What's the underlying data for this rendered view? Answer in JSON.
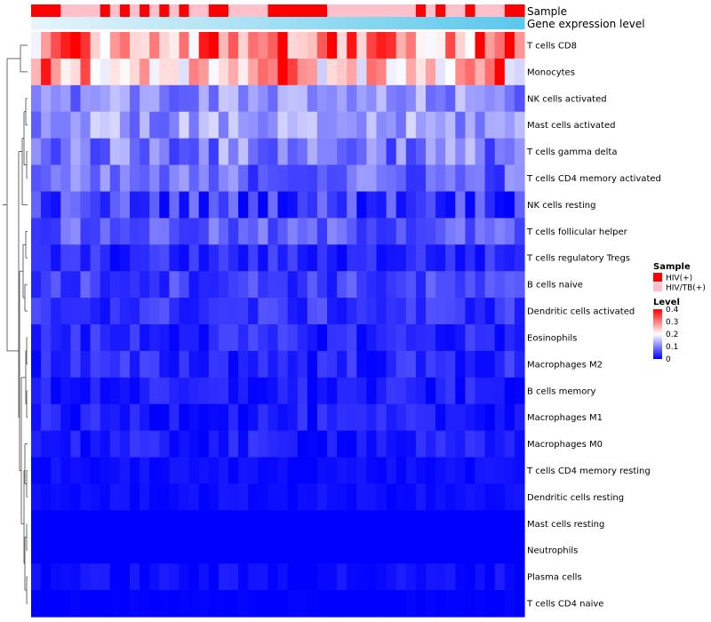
{
  "chart_data": {
    "type": "heatmap",
    "annotation_tracks": [
      "Sample",
      "Gene expression level"
    ],
    "row_labels": [
      "T cells CD8",
      "Monocytes",
      "NK cells activated",
      "Mast cells activated",
      "T cells gamma delta",
      "T cells CD4 memory activated",
      "NK cells resting",
      "T cells follicular helper",
      "T cells regulatory  Tregs",
      "B cells naive",
      "Dendritic cells activated",
      "Eosinophils",
      "Macrophages M2",
      "B cells memory",
      "Macrophages M1",
      "Macrophages M0",
      "T cells CD4 memory resting",
      "Dendritic cells resting",
      "Mast cells resting",
      "Neutrophils",
      "Plasma cells",
      "T cells CD4 naive"
    ],
    "n_columns": 50,
    "sample_groups": [
      "HIV(+)",
      "HIV/TB(+)"
    ],
    "column_sample_group": [
      0,
      0,
      0,
      1,
      1,
      1,
      1,
      0,
      1,
      0,
      1,
      0,
      1,
      0,
      1,
      0,
      1,
      1,
      0,
      0,
      1,
      1,
      1,
      1,
      0,
      0,
      0,
      0,
      0,
      0,
      1,
      1,
      1,
      1,
      1,
      1,
      1,
      1,
      1,
      0,
      1,
      0,
      1,
      1,
      0,
      1,
      1,
      1,
      0,
      0
    ],
    "legend": {
      "sample_title": "Sample",
      "sample_entries": [
        {
          "label": "HIV(+)",
          "color": "#ff0000"
        },
        {
          "label": "HIV/TB(+)",
          "color": "#ffc0cb"
        }
      ],
      "level_title": "Level",
      "level_ticks": [
        "0.4",
        "0.3",
        "0.2",
        "0.1",
        "0"
      ],
      "level_range": [
        0,
        0.4
      ]
    },
    "expression_gradient": {
      "low": "#e6f4fa",
      "high": "#5bc8ec"
    },
    "color_scale": {
      "low": "#0000ff",
      "mid": "#ffffff",
      "high": "#ff0000",
      "min": 0,
      "max": 0.4,
      "mid_value": 0.2
    },
    "row_means": [
      0.29,
      0.24,
      0.11,
      0.12,
      0.1,
      0.08,
      0.05,
      0.07,
      0.03,
      0.05,
      0.04,
      0.03,
      0.03,
      0.02,
      0.02,
      0.02,
      0.01,
      0.01,
      0.0,
      0.0,
      0.01,
      0.0
    ],
    "row_spread": [
      0.1,
      0.08,
      0.05,
      0.05,
      0.06,
      0.05,
      0.05,
      0.04,
      0.03,
      0.035,
      0.03,
      0.03,
      0.03,
      0.025,
      0.025,
      0.025,
      0.01,
      0.01,
      0.0,
      0.0,
      0.015,
      0.005
    ]
  }
}
